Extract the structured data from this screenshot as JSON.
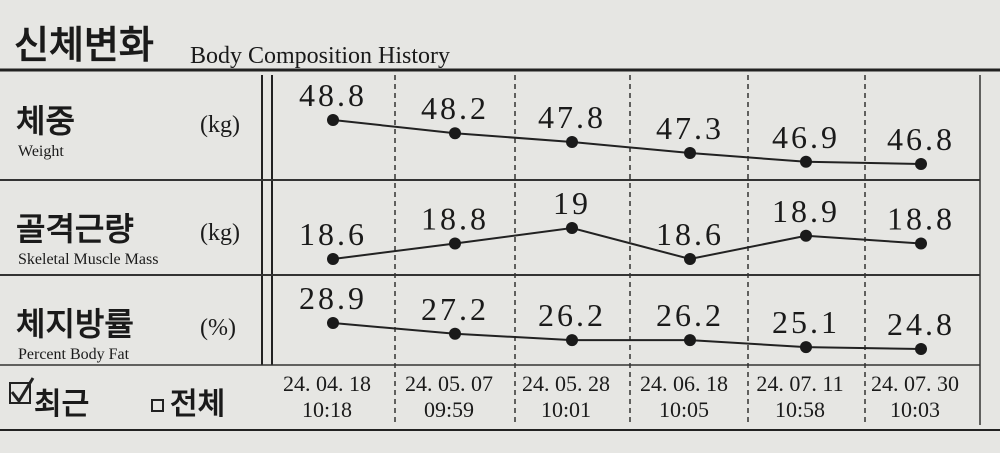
{
  "header": {
    "title": "신체변화",
    "subtitle": "Body Composition History"
  },
  "chart_data": [
    {
      "type": "line",
      "title": "체중",
      "unit": "(kg)",
      "subtitle": "Weight",
      "values": [
        48.8,
        48.2,
        47.8,
        47.3,
        46.9,
        46.8
      ]
    },
    {
      "type": "line",
      "title": "골격근량",
      "unit": "(kg)",
      "subtitle": "Skeletal Muscle Mass",
      "values": [
        18.6,
        18.8,
        19.0,
        18.6,
        18.9,
        18.8
      ]
    },
    {
      "type": "line",
      "title": "체지방률",
      "unit": "(%)",
      "subtitle": "Percent Body Fat",
      "values": [
        28.9,
        27.2,
        26.2,
        26.2,
        25.1,
        24.8
      ]
    }
  ],
  "dates": [
    "24. 04. 18",
    "24. 05. 07",
    "24. 05. 28",
    "24. 06. 18",
    "24. 07. 11",
    "24. 07. 30"
  ],
  "times": [
    "10:18",
    "09:59",
    "10:01",
    "10:05",
    "10:58",
    "10:03"
  ],
  "footer": {
    "recent": "최근",
    "all": "전체"
  }
}
